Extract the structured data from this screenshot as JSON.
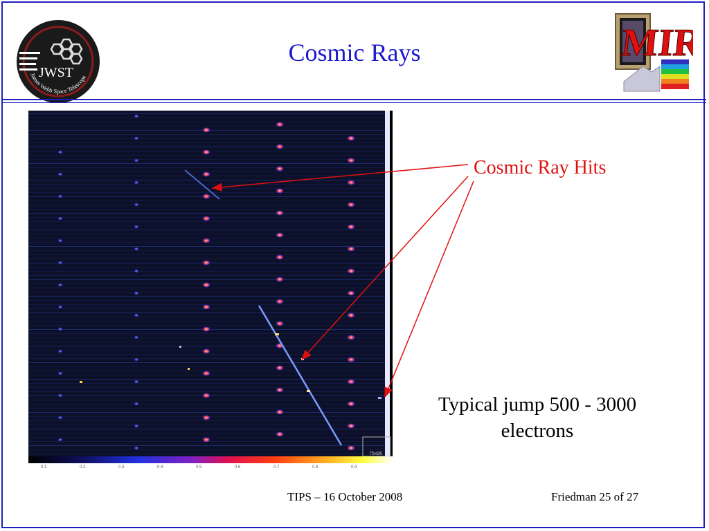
{
  "slide": {
    "title": "Cosmic Rays",
    "annotation": "Cosmic Ray Hits",
    "note_line1": "Typical jump 500 - 3000",
    "note_line2": "electrons",
    "footer_left": "TIPS – 16 October 2008",
    "footer_right": "Friedman 25 of 27"
  },
  "logos": {
    "jwst_letters": "JWST",
    "jwst_ring_text": "James Webb Space Telescope",
    "miri_text": "MIRI"
  },
  "image": {
    "corner_label": "75x96",
    "colorbar_ticks": [
      "0.1",
      "0.2",
      "0.3",
      "0.4",
      "0.5",
      "0.6",
      "0.7",
      "0.8",
      "0.9"
    ]
  },
  "colors": {
    "title_blue": "#1a1acc",
    "annotation_red": "#e01010",
    "rule_blue": "#1f1fbf"
  }
}
